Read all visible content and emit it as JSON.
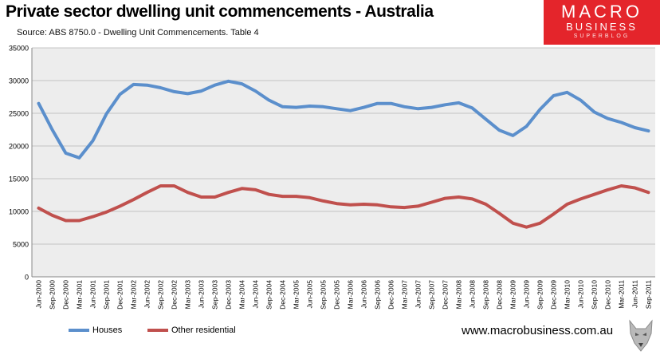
{
  "header": {
    "title": "Private sector dwelling unit commencements - Australia",
    "source": "Source: ABS 8750.0 - Dwelling Unit Commencements. Table 4"
  },
  "logo": {
    "line1": "MACRO",
    "line2": "BUSINESS",
    "line3": "SUPERBLOG"
  },
  "footer": {
    "url": "www.macrobusiness.com.au"
  },
  "colors": {
    "houses": "#5b8fcc",
    "other_residential": "#c0504d",
    "plot_bg": "#ededed",
    "logo": "#e4252b"
  },
  "chart_data": {
    "type": "line",
    "title": "Private sector dwelling unit commencements - Australia",
    "ylim": [
      0,
      35000
    ],
    "yticks": [
      0,
      5000,
      10000,
      15000,
      20000,
      25000,
      30000,
      35000
    ],
    "grid": true,
    "legend_position": "bottom-left",
    "categories": [
      "Jun-2000",
      "Sep-2000",
      "Dec-2000",
      "Mar-2001",
      "Jun-2001",
      "Sep-2001",
      "Dec-2001",
      "Mar-2002",
      "Jun-2002",
      "Sep-2002",
      "Dec-2002",
      "Mar-2003",
      "Jun-2003",
      "Sep-2003",
      "Dec-2003",
      "Mar-2004",
      "Jun-2004",
      "Sep-2004",
      "Dec-2004",
      "Mar-2005",
      "Jun-2005",
      "Sep-2005",
      "Dec-2005",
      "Mar-2006",
      "Jun-2006",
      "Sep-2006",
      "Dec-2006",
      "Mar-2007",
      "Jun-2007",
      "Sep-2007",
      "Dec-2007",
      "Mar-2008",
      "Jun-2008",
      "Sep-2008",
      "Dec-2008",
      "Mar-2009",
      "Jun-2009",
      "Sep-2009",
      "Dec-2009",
      "Mar-2010",
      "Jun-2010",
      "Sep-2010",
      "Dec-2010",
      "Mar-2011",
      "Jun-2011",
      "Sep-2011"
    ],
    "series": [
      {
        "name": "Houses",
        "color": "#5b8fcc",
        "values": [
          26500,
          22500,
          18900,
          18200,
          20800,
          24900,
          27900,
          29400,
          29300,
          28900,
          28300,
          28000,
          28400,
          29300,
          29900,
          29500,
          28400,
          27000,
          26000,
          25900,
          26100,
          26000,
          25700,
          25400,
          25900,
          26500,
          26500,
          26000,
          25700,
          25900,
          26300,
          26600,
          25800,
          24100,
          22400,
          21600,
          23000,
          25600,
          27700,
          28200,
          27000,
          25200,
          24200,
          23600,
          22800,
          22300
        ]
      },
      {
        "name": "Other residential",
        "color": "#c0504d",
        "values": [
          10500,
          9400,
          8600,
          8600,
          9200,
          9900,
          10800,
          11800,
          12900,
          13900,
          13900,
          12900,
          12200,
          12200,
          12900,
          13500,
          13300,
          12600,
          12300,
          12300,
          12100,
          11600,
          11200,
          11000,
          11100,
          11000,
          10700,
          10600,
          10800,
          11400,
          12000,
          12200,
          11900,
          11100,
          9700,
          8200,
          7600,
          8200,
          9600,
          11100,
          11900,
          12600,
          13300,
          13900,
          13600,
          12900
        ]
      }
    ]
  }
}
